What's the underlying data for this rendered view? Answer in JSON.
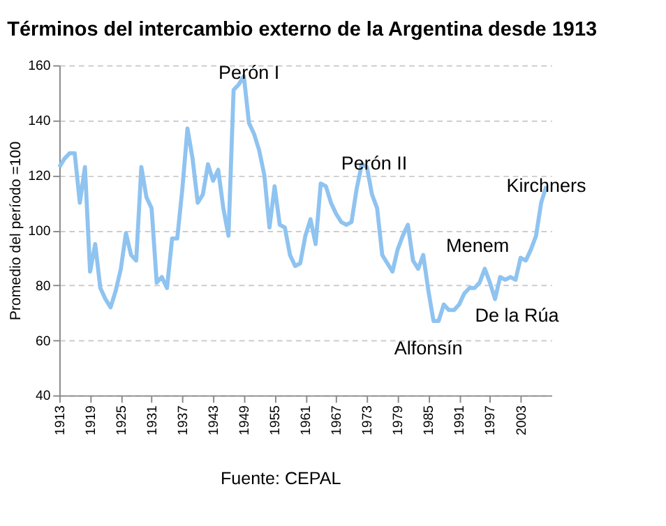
{
  "chart_data": {
    "type": "line",
    "title": "Términos del intercambio externo de la Argentina desde 1913",
    "ylabel": "Promedio del período =100",
    "x": [
      1913,
      1914,
      1915,
      1916,
      1917,
      1918,
      1919,
      1920,
      1921,
      1922,
      1923,
      1924,
      1925,
      1926,
      1927,
      1928,
      1929,
      1930,
      1931,
      1932,
      1933,
      1934,
      1935,
      1936,
      1937,
      1938,
      1939,
      1940,
      1941,
      1942,
      1943,
      1944,
      1945,
      1946,
      1947,
      1948,
      1949,
      1950,
      1951,
      1952,
      1953,
      1954,
      1955,
      1956,
      1957,
      1958,
      1959,
      1960,
      1961,
      1962,
      1963,
      1964,
      1965,
      1966,
      1967,
      1968,
      1969,
      1970,
      1971,
      1972,
      1973,
      1974,
      1975,
      1976,
      1977,
      1978,
      1979,
      1980,
      1981,
      1982,
      1983,
      1984,
      1985,
      1986,
      1987,
      1988,
      1989,
      1990,
      1991,
      1992,
      1993,
      1994,
      1995,
      1996,
      1997,
      1998,
      1999,
      2000,
      2001,
      2002,
      2003,
      2004,
      2005,
      2006,
      2007,
      2008
    ],
    "series": [
      {
        "color": "#8fc3f0",
        "values": [
          123,
          126,
          128,
          128,
          110,
          123,
          85,
          95,
          79,
          75,
          72,
          78,
          86,
          99,
          91,
          89,
          123,
          112,
          108,
          81,
          83,
          79,
          97,
          97,
          115,
          137,
          126,
          110,
          113,
          124,
          118,
          122,
          108,
          98,
          151,
          153,
          156,
          139,
          135,
          129,
          120,
          101,
          116,
          102,
          101,
          91,
          87,
          88,
          98,
          104,
          95,
          117,
          116,
          110,
          106,
          103,
          102,
          103,
          115,
          124,
          123,
          113,
          108,
          91,
          88,
          85,
          93,
          98,
          102,
          89,
          86,
          91,
          78,
          67,
          67,
          73,
          71,
          71,
          73,
          77,
          79,
          79,
          81,
          86,
          81,
          75,
          83,
          82,
          83,
          82,
          90,
          89,
          93,
          98,
          110,
          116
        ]
      }
    ],
    "xlim": [
      1913,
      2009
    ],
    "xticks": [
      1913,
      1919,
      1925,
      1931,
      1937,
      1943,
      1949,
      1955,
      1961,
      1967,
      1973,
      1979,
      1985,
      1991,
      1997,
      2003
    ],
    "ylim": [
      40,
      160
    ],
    "yticks": [
      40,
      60,
      80,
      100,
      120,
      140,
      160
    ],
    "grid": "y",
    "marker": "none",
    "line_style": "solid",
    "annotations": [
      {
        "text": "Perón I",
        "x": 1950,
        "y": 157
      },
      "Perón II",
      "Alfonsín",
      "Menem",
      "De la Rúa",
      {
        "text": "Kirchners",
        "x": 2008,
        "y": 116
      },
      "Fuente: CEPAL"
    ]
  }
}
